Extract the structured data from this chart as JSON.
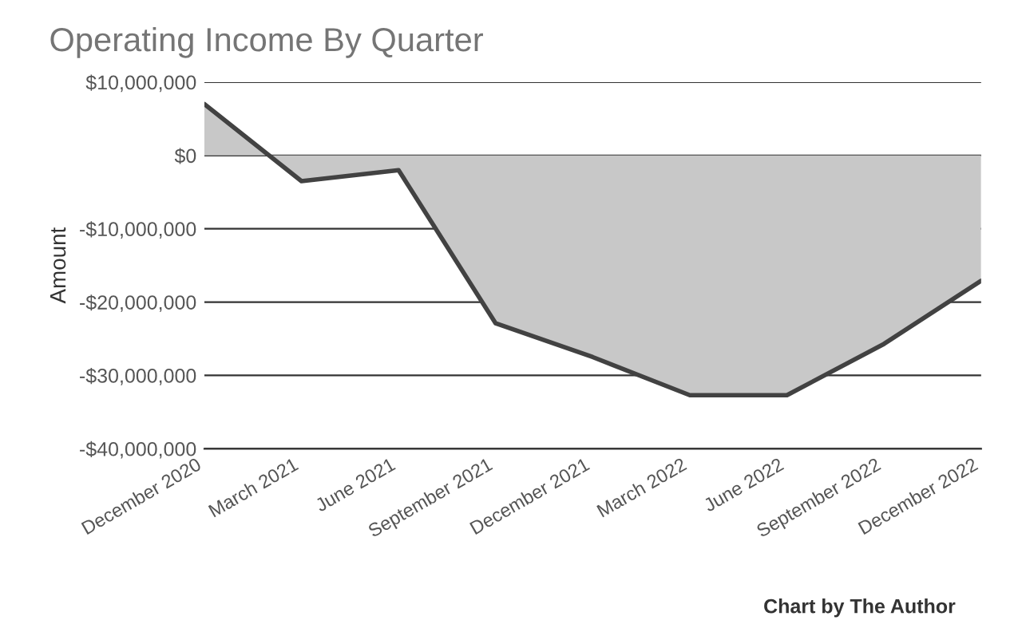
{
  "chart_data": {
    "type": "area",
    "title": "Operating Income By Quarter",
    "ylabel": "Amount",
    "categories": [
      "December 2020",
      "March 2021",
      "June 2021",
      "September 2021",
      "December 2021",
      "March 2022",
      "June 2022",
      "September 2022",
      "December 2022"
    ],
    "series": [
      {
        "color": "#424242",
        "values": [
          7000000,
          -3500000,
          -2000000,
          -22900000,
          -27500000,
          -32700000,
          -32700000,
          -25700000,
          -17100000
        ]
      }
    ],
    "ylim": [
      -40000000,
      10000000
    ],
    "yticks": [
      {
        "value": -40000000,
        "label": "-$40,000,000"
      },
      {
        "value": -30000000,
        "label": "-$30,000,000"
      },
      {
        "value": -20000000,
        "label": "-$20,000,000"
      },
      {
        "value": -10000000,
        "label": "-$10,000,000"
      },
      {
        "value": 0,
        "label": "$0"
      },
      {
        "value": 10000000,
        "label": "$10,000,000"
      }
    ],
    "grid": "y",
    "annotations": [
      "Chart by The Author"
    ]
  }
}
